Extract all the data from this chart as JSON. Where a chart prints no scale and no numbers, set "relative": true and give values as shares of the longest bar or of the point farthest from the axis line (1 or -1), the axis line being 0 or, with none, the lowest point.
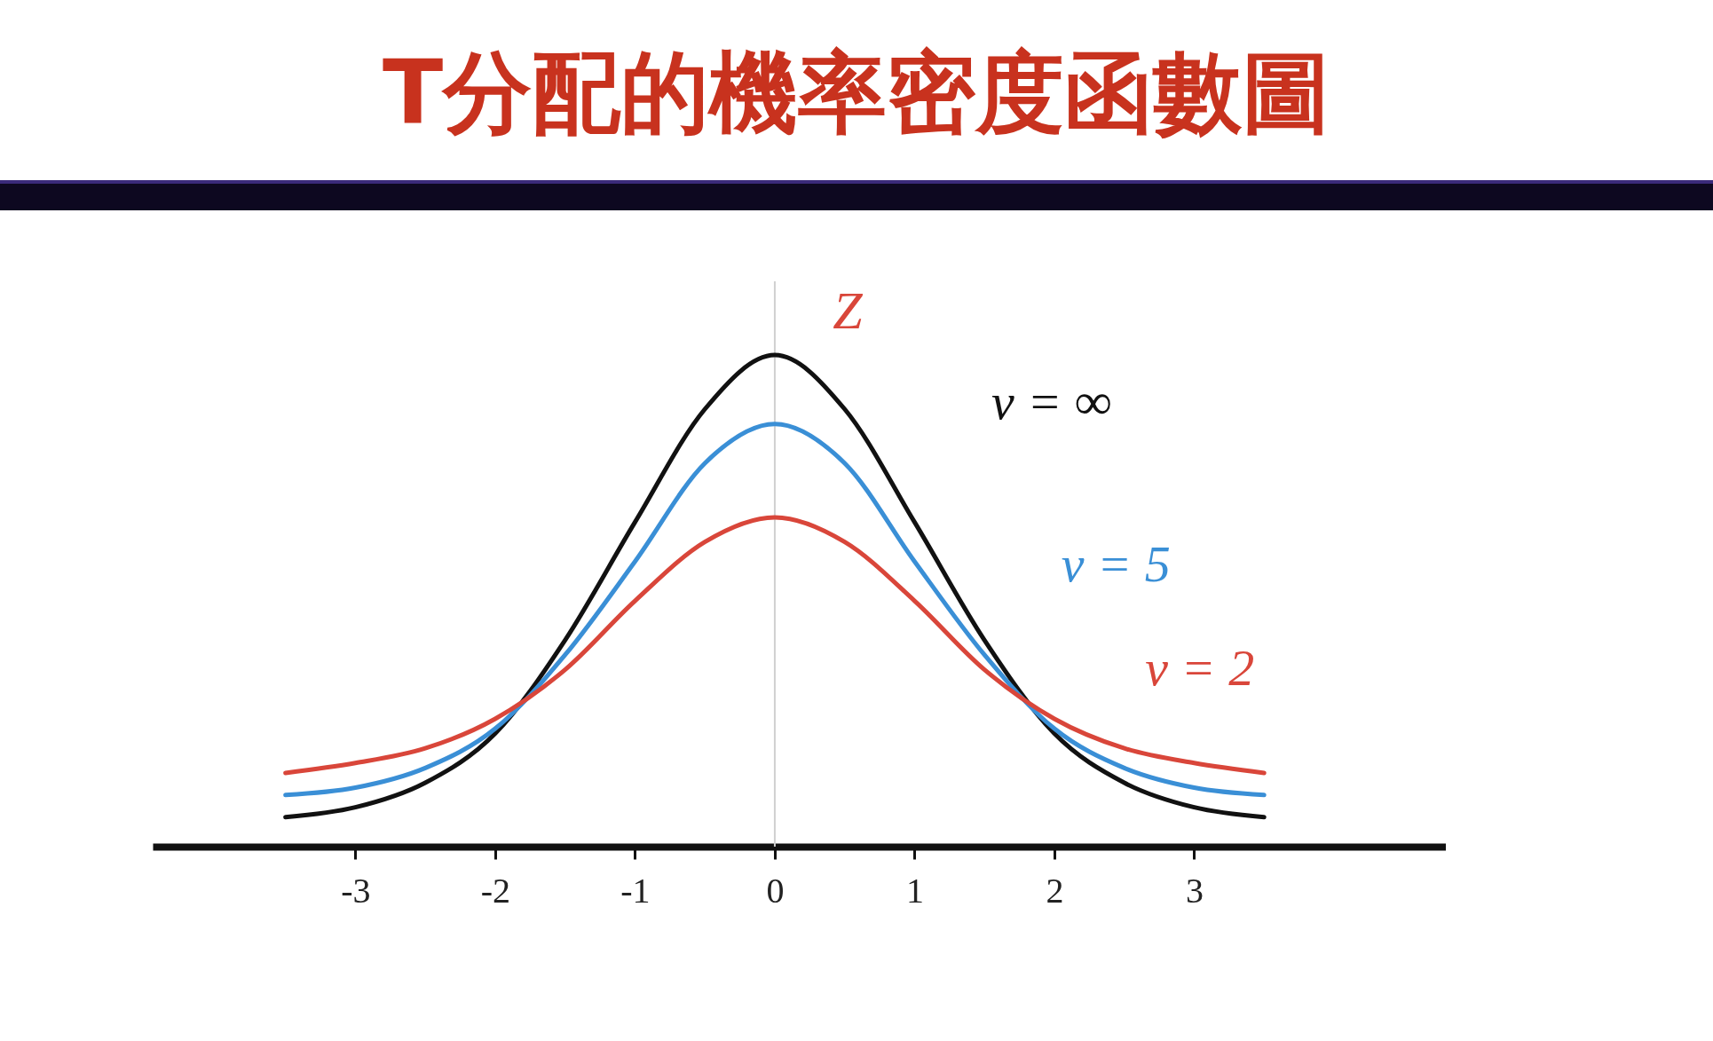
{
  "chart_data": {
    "type": "line",
    "title": "T分配的機率密度函數圖",
    "relative": true,
    "x": [
      -3.5,
      -3,
      -2.5,
      -2,
      -1.5,
      -1,
      -0.5,
      0,
      0.5,
      1,
      1.5,
      2,
      2.5,
      3,
      3.5
    ],
    "xlim": [
      -4.45,
      4.8
    ],
    "xticks": [
      {
        "value": -3,
        "label": "-3"
      },
      {
        "value": -2,
        "label": "-2"
      },
      {
        "value": -1,
        "label": "-1"
      },
      0,
      1,
      2,
      3
    ],
    "series": [
      {
        "name": "ν = ∞",
        "color": "#111111",
        "values": [
          0.06,
          0.08,
          0.13,
          0.23,
          0.42,
          0.66,
          0.89,
          1,
          0.89,
          0.66,
          0.42,
          0.23,
          0.13,
          0.08,
          0.06
        ]
      },
      {
        "name": "ν = 5",
        "color": "#3a8fd6",
        "values": [
          0.105,
          0.12,
          0.16,
          0.24,
          0.39,
          0.58,
          0.78,
          0.86,
          0.78,
          0.58,
          0.39,
          0.24,
          0.16,
          0.12,
          0.105
        ]
      },
      {
        "name": "ν = 2",
        "color": "#d9463a",
        "values": [
          0.15,
          0.17,
          0.2,
          0.26,
          0.36,
          0.5,
          0.62,
          0.67,
          0.62,
          0.5,
          0.36,
          0.26,
          0.2,
          0.17,
          0.15
        ]
      }
    ],
    "ref_lines": [
      {
        "axis": "x",
        "value": 0,
        "color": "#d0d0d0"
      }
    ],
    "annotations": [
      "Z"
    ]
  }
}
